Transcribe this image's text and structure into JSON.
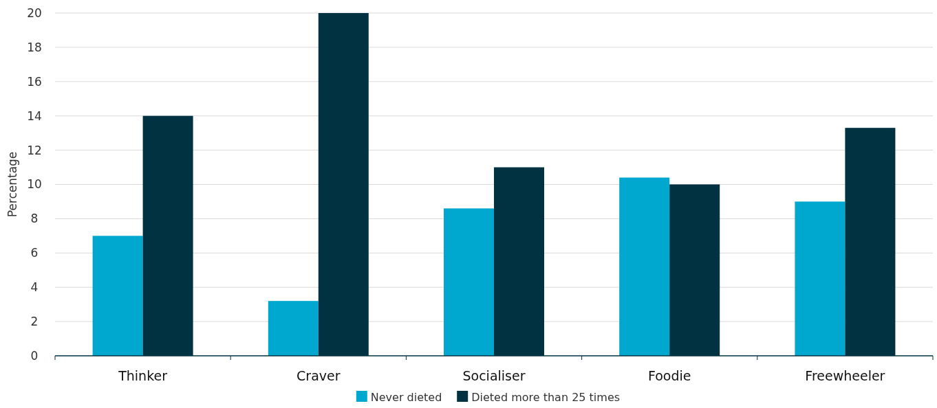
{
  "chart_data": {
    "type": "bar",
    "ylabel": "Percentage",
    "categories": [
      "Thinker",
      "Craver",
      "Socialiser",
      "Foodie",
      "Freewheeler"
    ],
    "series": [
      {
        "name": "Never dieted",
        "color": "#00a8cf",
        "values": [
          7,
          3.2,
          8.6,
          10.4,
          9
        ]
      },
      {
        "name": "Dieted more than 25 times",
        "color": "#003241",
        "values": [
          14,
          20,
          11,
          10,
          13.3
        ]
      }
    ],
    "ylim": [
      0,
      20
    ],
    "yticks": [
      0,
      2,
      4,
      6,
      8,
      10,
      12,
      14,
      16,
      18,
      20
    ],
    "grid": "y",
    "legend": "bottom"
  }
}
